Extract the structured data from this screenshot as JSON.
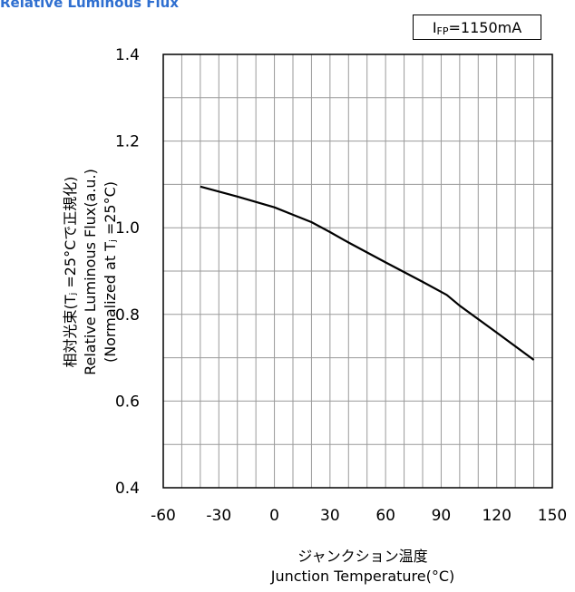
{
  "chart_data": {
    "type": "line",
    "title": "Relative Luminous Flux",
    "legend_parts": {
      "prefix": "I",
      "sub": "FP",
      "suffix": "=1150mA"
    },
    "xlabel_jp": "ジャンクション温度",
    "xlabel_en": "Junction Temperature(°C)",
    "ylabel_lines": [
      "相対光束(Tⱼ =25°Cで正規化)",
      "Relative Luminous Flux(a.u.)",
      "(Normalized at Tⱼ =25°C)"
    ],
    "xlim": [
      -60,
      150
    ],
    "ylim": [
      0.4,
      1.4
    ],
    "xticks": [
      -60,
      -30,
      0,
      30,
      60,
      90,
      120,
      150
    ],
    "yticks": [
      0.4,
      0.6,
      0.8,
      1.0,
      1.2,
      1.4
    ],
    "ytick_labels": [
      "0.4",
      "0.6",
      "0.8",
      "1.0",
      "1.2",
      "1.4"
    ],
    "xtick_labels": [
      "-60",
      "-30",
      "0",
      "30",
      "60",
      "90",
      "120",
      "150"
    ],
    "grid": true,
    "series": [
      {
        "x": [
          -40,
          -20,
          0,
          10,
          20,
          30,
          40,
          60,
          80,
          93,
          100,
          120,
          140
        ],
        "y": [
          1.095,
          1.072,
          1.047,
          1.03,
          1.013,
          0.99,
          0.966,
          0.92,
          0.875,
          0.845,
          0.82,
          0.758,
          0.695
        ]
      }
    ]
  }
}
